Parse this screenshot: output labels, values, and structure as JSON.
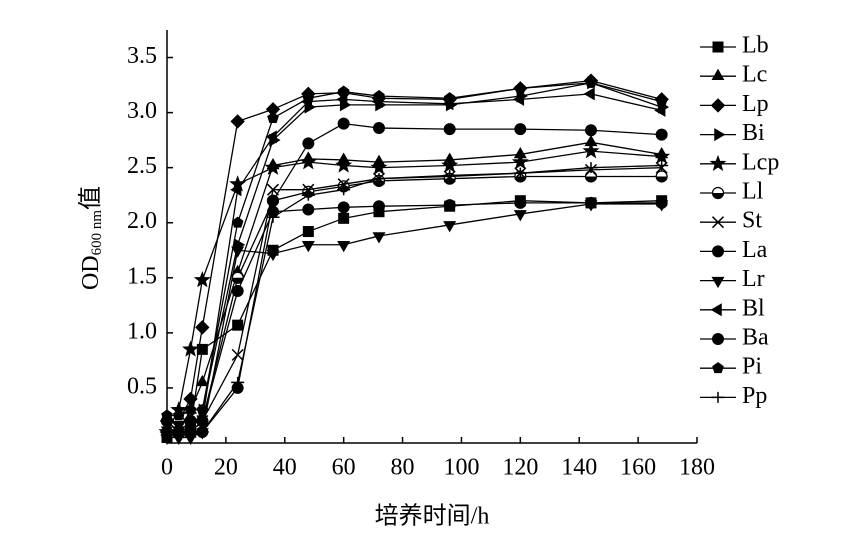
{
  "chart_data": {
    "type": "line",
    "x_label": "培养时间/h",
    "y_label": {
      "main": "OD",
      "sub": "600 nm",
      "suffix": "值"
    },
    "x": [
      0,
      4,
      8,
      12,
      24,
      36,
      48,
      60,
      72,
      96,
      120,
      144,
      168
    ],
    "xlim": [
      0,
      180
    ],
    "xticks": [
      0,
      20,
      40,
      60,
      80,
      100,
      120,
      140,
      160,
      180
    ],
    "ylim": [
      0,
      3.75
    ],
    "yticks": [
      0.5,
      {
        "value": 1,
        "label": "1.0"
      },
      1.5,
      {
        "value": 2,
        "label": "2.0"
      },
      2.5,
      {
        "value": 3,
        "label": "3.0"
      },
      3.5
    ],
    "legend": "right",
    "series": [
      {
        "name": "Lb",
        "color": "#000000",
        "marker": "square",
        "values": [
          0.05,
          0.1,
          0.15,
          0.85,
          1.07,
          1.75,
          1.92,
          2.04,
          2.1,
          2.15,
          2.2,
          2.18,
          2.2
        ]
      },
      {
        "name": "Lc",
        "color": "#000000",
        "marker": "triangle-up",
        "values": [
          0.1,
          0.1,
          0.3,
          0.55,
          1.55,
          2.52,
          2.58,
          2.57,
          2.55,
          2.57,
          2.62,
          2.73,
          2.62
        ]
      },
      {
        "name": "Lp",
        "color": "#000000",
        "marker": "diamond",
        "values": [
          0.2,
          0.2,
          0.4,
          1.05,
          2.92,
          3.03,
          3.17,
          3.18,
          3.13,
          3.12,
          3.22,
          3.29,
          3.12
        ]
      },
      {
        "name": "Bi",
        "color": "#000000",
        "marker": "triangle-right",
        "values": [
          0.1,
          0.1,
          0.1,
          0.3,
          1.8,
          2.75,
          3.05,
          3.07,
          3.07,
          3.07,
          3.15,
          3.27,
          3.05
        ]
      },
      {
        "name": "Lcp",
        "color": "#000000",
        "marker": "star",
        "values": [
          0.1,
          0.3,
          0.85,
          1.48,
          2.35,
          2.5,
          2.55,
          2.52,
          2.5,
          2.52,
          2.55,
          2.65,
          2.6
        ]
      },
      {
        "name": "Ll",
        "color": "#000000",
        "marker": "half-circle",
        "values": [
          0.2,
          0.2,
          0.2,
          0.2,
          1.5,
          2.2,
          2.28,
          2.33,
          2.38,
          2.4,
          2.42,
          2.42,
          2.42
        ]
      },
      {
        "name": "St",
        "color": "#000000",
        "marker": "x",
        "values": [
          0.1,
          0.1,
          0.1,
          0.2,
          0.8,
          2.3,
          2.3,
          2.35,
          2.4,
          2.42,
          2.45,
          2.48,
          2.5
        ]
      },
      {
        "name": "La",
        "color": "#000000",
        "marker": "circle",
        "values": [
          0.2,
          0.1,
          0.2,
          0.2,
          1.38,
          2.1,
          2.12,
          2.14,
          2.15,
          2.16,
          2.18,
          2.18,
          2.18
        ]
      },
      {
        "name": "Lr",
        "color": "#000000",
        "marker": "triangle-down",
        "values": [
          0.05,
          0.05,
          0.05,
          0.1,
          1.75,
          1.72,
          1.8,
          1.8,
          1.88,
          1.98,
          2.08,
          2.17,
          2.17
        ]
      },
      {
        "name": "Bl",
        "color": "#000000",
        "marker": "triangle-left",
        "values": [
          0.1,
          0.1,
          0.1,
          0.2,
          2.3,
          2.78,
          3.1,
          3.12,
          3.1,
          3.08,
          3.12,
          3.17,
          3.02
        ]
      },
      {
        "name": "Ba",
        "color": "#000000",
        "marker": "circle",
        "values": [
          0.1,
          0.1,
          0.1,
          0.1,
          0.5,
          2.2,
          2.72,
          2.9,
          2.86,
          2.85,
          2.85,
          2.84,
          2.8
        ]
      },
      {
        "name": "Pi",
        "color": "#000000",
        "marker": "pentagon",
        "values": [
          0.25,
          0.25,
          0.3,
          0.3,
          2.0,
          2.95,
          3.13,
          3.19,
          3.15,
          3.13,
          3.22,
          3.27,
          3.1
        ]
      },
      {
        "name": "Pp",
        "color": "#000000",
        "marker": "plus",
        "values": [
          0.1,
          0.1,
          0.1,
          0.1,
          0.55,
          2.05,
          2.25,
          2.3,
          2.4,
          2.43,
          2.45,
          2.5,
          2.52
        ]
      }
    ]
  }
}
